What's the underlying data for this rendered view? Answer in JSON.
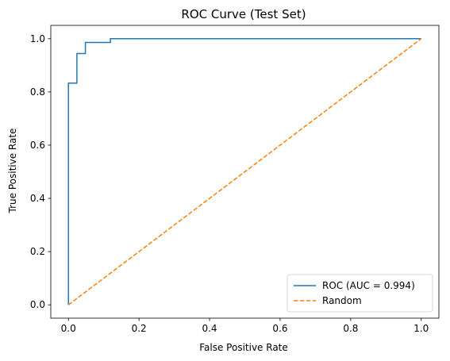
{
  "chart_data": {
    "type": "line",
    "title": "ROC Curve (Test Set)",
    "xlabel": "False Positive Rate",
    "ylabel": "True Positive Rate",
    "xlim": [
      -0.05,
      1.05
    ],
    "ylim": [
      -0.05,
      1.05
    ],
    "xticks": [
      0.0,
      0.2,
      0.4,
      0.6,
      0.8,
      1.0
    ],
    "yticks": [
      0.0,
      0.2,
      0.4,
      0.6,
      0.8,
      1.0
    ],
    "xtick_labels": [
      "0.0",
      "0.2",
      "0.4",
      "0.6",
      "0.8",
      "1.0"
    ],
    "ytick_labels": [
      "0.0",
      "0.2",
      "0.4",
      "0.6",
      "0.8",
      "1.0"
    ],
    "grid": false,
    "legend_position": "lower-right",
    "series": [
      {
        "name": "ROC (AUC = 0.994)",
        "style": "solid",
        "color": "#1f77b4",
        "x": [
          0.0,
          0.0,
          0.024,
          0.024,
          0.048,
          0.048,
          0.119,
          0.119,
          1.0
        ],
        "y": [
          0.0,
          0.833,
          0.833,
          0.944,
          0.944,
          0.986,
          0.986,
          1.0,
          1.0
        ]
      },
      {
        "name": "Random",
        "style": "dashed",
        "color": "#ff7f0e",
        "x": [
          0.0,
          1.0
        ],
        "y": [
          0.0,
          1.0
        ]
      }
    ]
  }
}
